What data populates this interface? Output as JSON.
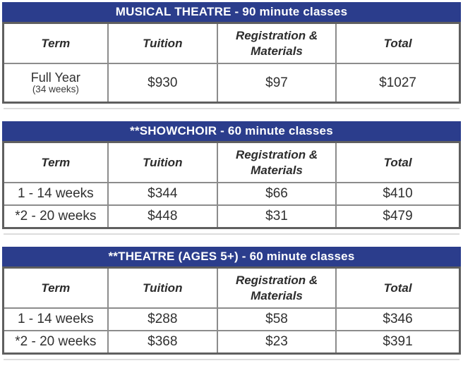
{
  "colors": {
    "title_bar_bg": "#2b3d8c",
    "title_bar_text": "#ffffff",
    "outer_border": "#5f5f5f",
    "inner_border": "#8c8c8c",
    "cell_text": "#303030",
    "shadow_line": "#dcdcdc"
  },
  "tables": [
    {
      "title": "MUSICAL THEATRE - 90 minute classes",
      "columns": [
        "Term",
        "Tuition",
        "Registration & Materials",
        "Total"
      ],
      "rows": [
        {
          "term": "Full Year",
          "term_sub": "(34 weeks)",
          "tuition": "$930",
          "registration": "$97",
          "total": "$1027"
        }
      ]
    },
    {
      "title": "**SHOWCHOIR - 60 minute classes",
      "columns": [
        "Term",
        "Tuition",
        "Registration & Materials",
        "Total"
      ],
      "rows": [
        {
          "term": "1 - 14 weeks",
          "tuition": "$344",
          "registration": "$66",
          "total": "$410"
        },
        {
          "term": "*2 - 20 weeks",
          "tuition": "$448",
          "registration": "$31",
          "total": "$479"
        }
      ]
    },
    {
      "title": "**THEATRE (AGES 5+) - 60 minute classes",
      "columns": [
        "Term",
        "Tuition",
        "Registration & Materials",
        "Total"
      ],
      "rows": [
        {
          "term": "1 - 14 weeks",
          "tuition": "$288",
          "registration": "$58",
          "total": "$346"
        },
        {
          "term": "*2 - 20 weeks",
          "tuition": "$368",
          "registration": "$23",
          "total": "$391"
        }
      ]
    }
  ]
}
